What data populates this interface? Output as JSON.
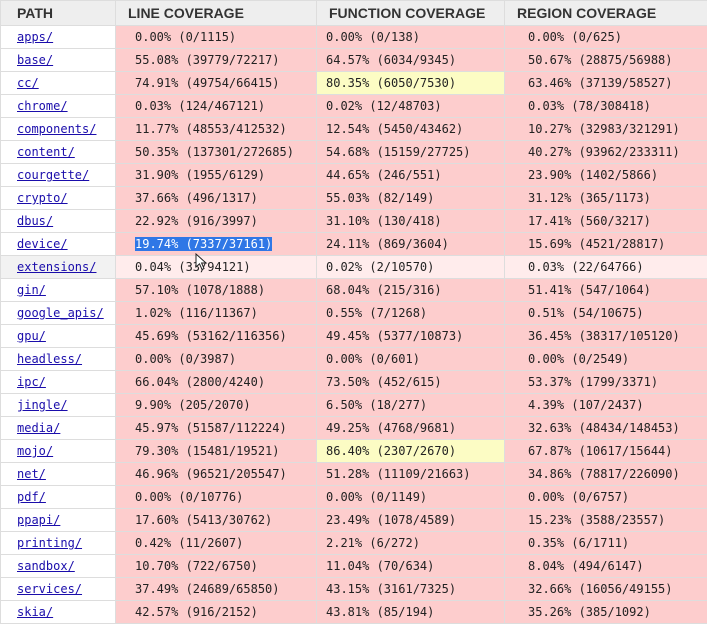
{
  "headers": [
    "PATH",
    "LINE COVERAGE",
    "FUNCTION COVERAGE",
    "REGION COVERAGE"
  ],
  "rows": [
    {
      "path": "apps/",
      "line": "0.00% (0/1115)",
      "func": "0.00% (0/138)",
      "region": "0.00% (0/625)"
    },
    {
      "path": "base/",
      "line": "55.08% (39779/72217)",
      "func": "64.57% (6034/9345)",
      "region": "50.67% (28875/56988)"
    },
    {
      "path": "cc/",
      "line": "74.91% (49754/66415)",
      "func": "80.35% (6050/7530)",
      "region": "63.46% (37139/58527)",
      "func_high": true
    },
    {
      "path": "chrome/",
      "line": "0.03% (124/467121)",
      "func": "0.02% (12/48703)",
      "region": "0.03% (78/308418)"
    },
    {
      "path": "components/",
      "line": "11.77% (48553/412532)",
      "func": "12.54% (5450/43462)",
      "region": "10.27% (32983/321291)"
    },
    {
      "path": "content/",
      "line": "50.35% (137301/272685)",
      "func": "54.68% (15159/27725)",
      "region": "40.27% (93962/233311)"
    },
    {
      "path": "courgette/",
      "line": "31.90% (1955/6129)",
      "func": "44.65% (246/551)",
      "region": "23.90% (1402/5866)"
    },
    {
      "path": "crypto/",
      "line": "37.66% (496/1317)",
      "func": "55.03% (82/149)",
      "region": "31.12% (365/1173)"
    },
    {
      "path": "dbus/",
      "line": "22.92% (916/3997)",
      "func": "31.10% (130/418)",
      "region": "17.41% (560/3217)"
    },
    {
      "path": "device/",
      "line": "19.74% (7337/37161)",
      "func": "24.11% (869/3604)",
      "region": "15.69% (4521/28817)",
      "line_selected": true
    },
    {
      "path": "extensions/",
      "line": "0.04% (33/94121)",
      "func": "0.02% (2/10570)",
      "region": "0.03% (22/64766)",
      "hovered": true
    },
    {
      "path": "gin/",
      "line": "57.10% (1078/1888)",
      "func": "68.04% (215/316)",
      "region": "51.41% (547/1064)"
    },
    {
      "path": "google_apis/",
      "line": "1.02% (116/11367)",
      "func": "0.55% (7/1268)",
      "region": "0.51% (54/10675)"
    },
    {
      "path": "gpu/",
      "line": "45.69% (53162/116356)",
      "func": "49.45% (5377/10873)",
      "region": "36.45% (38317/105120)"
    },
    {
      "path": "headless/",
      "line": "0.00% (0/3987)",
      "func": "0.00% (0/601)",
      "region": "0.00% (0/2549)"
    },
    {
      "path": "ipc/",
      "line": "66.04% (2800/4240)",
      "func": "73.50% (452/615)",
      "region": "53.37% (1799/3371)"
    },
    {
      "path": "jingle/",
      "line": "9.90% (205/2070)",
      "func": "6.50% (18/277)",
      "region": "4.39% (107/2437)"
    },
    {
      "path": "media/",
      "line": "45.97% (51587/112224)",
      "func": "49.25% (4768/9681)",
      "region": "32.63% (48434/148453)"
    },
    {
      "path": "mojo/",
      "line": "79.30% (15481/19521)",
      "func": "86.40% (2307/2670)",
      "region": "67.87% (10617/15644)",
      "func_high": true
    },
    {
      "path": "net/",
      "line": "46.96% (96521/205547)",
      "func": "51.28% (11109/21663)",
      "region": "34.86% (78817/226090)"
    },
    {
      "path": "pdf/",
      "line": "0.00% (0/10776)",
      "func": "0.00% (0/1149)",
      "region": "0.00% (0/6757)"
    },
    {
      "path": "ppapi/",
      "line": "17.60% (5413/30762)",
      "func": "23.49% (1078/4589)",
      "region": "15.23% (3588/23557)"
    },
    {
      "path": "printing/",
      "line": "0.42% (11/2607)",
      "func": "2.21% (6/272)",
      "region": "0.35% (6/1711)"
    },
    {
      "path": "sandbox/",
      "line": "10.70% (722/6750)",
      "func": "11.04% (70/634)",
      "region": "8.04% (494/6147)"
    },
    {
      "path": "services/",
      "line": "37.49% (24689/65850)",
      "func": "43.15% (3161/7325)",
      "region": "32.66% (16056/49155)"
    },
    {
      "path": "skia/",
      "line": "42.57% (916/2152)",
      "func": "43.81% (85/194)",
      "region": "35.26% (385/1092)"
    }
  ],
  "colors": {
    "low_coverage_bg": "#fdcdcd",
    "high_coverage_bg": "#fcfcc4",
    "header_bg": "#eeeeee",
    "link": "#1a0dab",
    "selection": "#2f77e6"
  }
}
